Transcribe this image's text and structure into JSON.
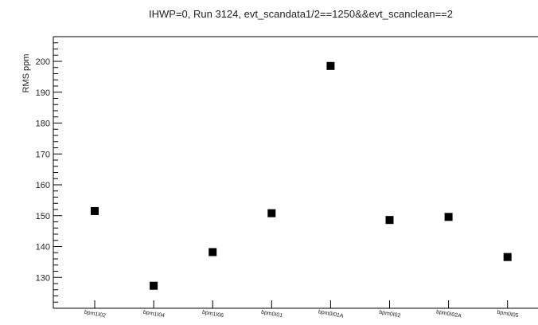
{
  "chart_data": {
    "type": "scatter",
    "title": "IHWP=0, Run 3124, evt_scandata1/2==1250&&evt_scanclean==2",
    "ylabel": "RMS ppm",
    "categories": [
      "bpm1I02",
      "bpm1I04",
      "bpm1I06",
      "bpm0I01",
      "bpm0I01A",
      "bpm0I02",
      "bpm0I02A",
      "bpm0I05"
    ],
    "values": [
      151.5,
      127.3,
      138.2,
      150.8,
      198.5,
      148.6,
      149.6,
      136.6
    ],
    "ylim": [
      120,
      208
    ],
    "yticks": [
      130,
      140,
      150,
      160,
      170,
      180,
      190,
      200
    ],
    "marker": "square",
    "marker_color": "#000000",
    "grid": false
  }
}
